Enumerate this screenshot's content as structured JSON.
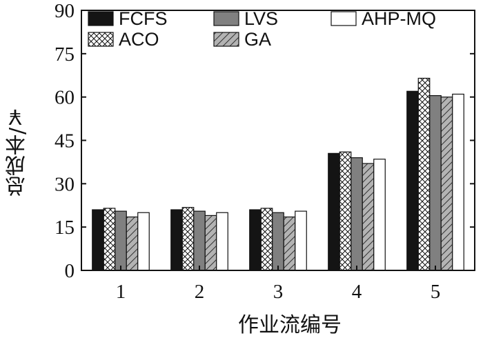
{
  "chart_data": {
    "type": "bar",
    "title": "",
    "xlabel": "作业流编号",
    "ylabel": "总成本/￥",
    "categories": [
      "1",
      "2",
      "3",
      "4",
      "5"
    ],
    "y_ticks": [
      "0",
      "15",
      "30",
      "45",
      "60",
      "75",
      "90"
    ],
    "ylim": [
      0,
      90
    ],
    "grid": false,
    "legend_position": "top",
    "series": [
      {
        "name": "FCFS",
        "values": [
          21,
          21,
          21,
          40.5,
          62
        ],
        "fill": "solid",
        "color": "#141414"
      },
      {
        "name": "ACO",
        "values": [
          21.5,
          21.8,
          21.5,
          41,
          66.5
        ],
        "fill": "crosshatch",
        "color": "#ffffff"
      },
      {
        "name": "LVS",
        "values": [
          20.5,
          20.5,
          20,
          39,
          60.5
        ],
        "fill": "solid",
        "color": "#808080"
      },
      {
        "name": "GA",
        "values": [
          18.5,
          19,
          18.5,
          37,
          60
        ],
        "fill": "diagonal",
        "color": "#b3b3b3"
      },
      {
        "name": "AHP-MQ",
        "values": [
          20,
          20,
          20.5,
          38.5,
          61
        ],
        "fill": "solid",
        "color": "#ffffff"
      }
    ]
  }
}
